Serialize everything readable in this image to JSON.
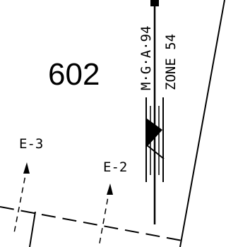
{
  "lot_number": "602",
  "datum": {
    "line1": "M·G·A·94",
    "line2": "ZONE 54"
  },
  "easement_labels": [
    "E-3",
    "E-2"
  ],
  "colors": {
    "ink": "#000000",
    "background": "#ffffff"
  }
}
